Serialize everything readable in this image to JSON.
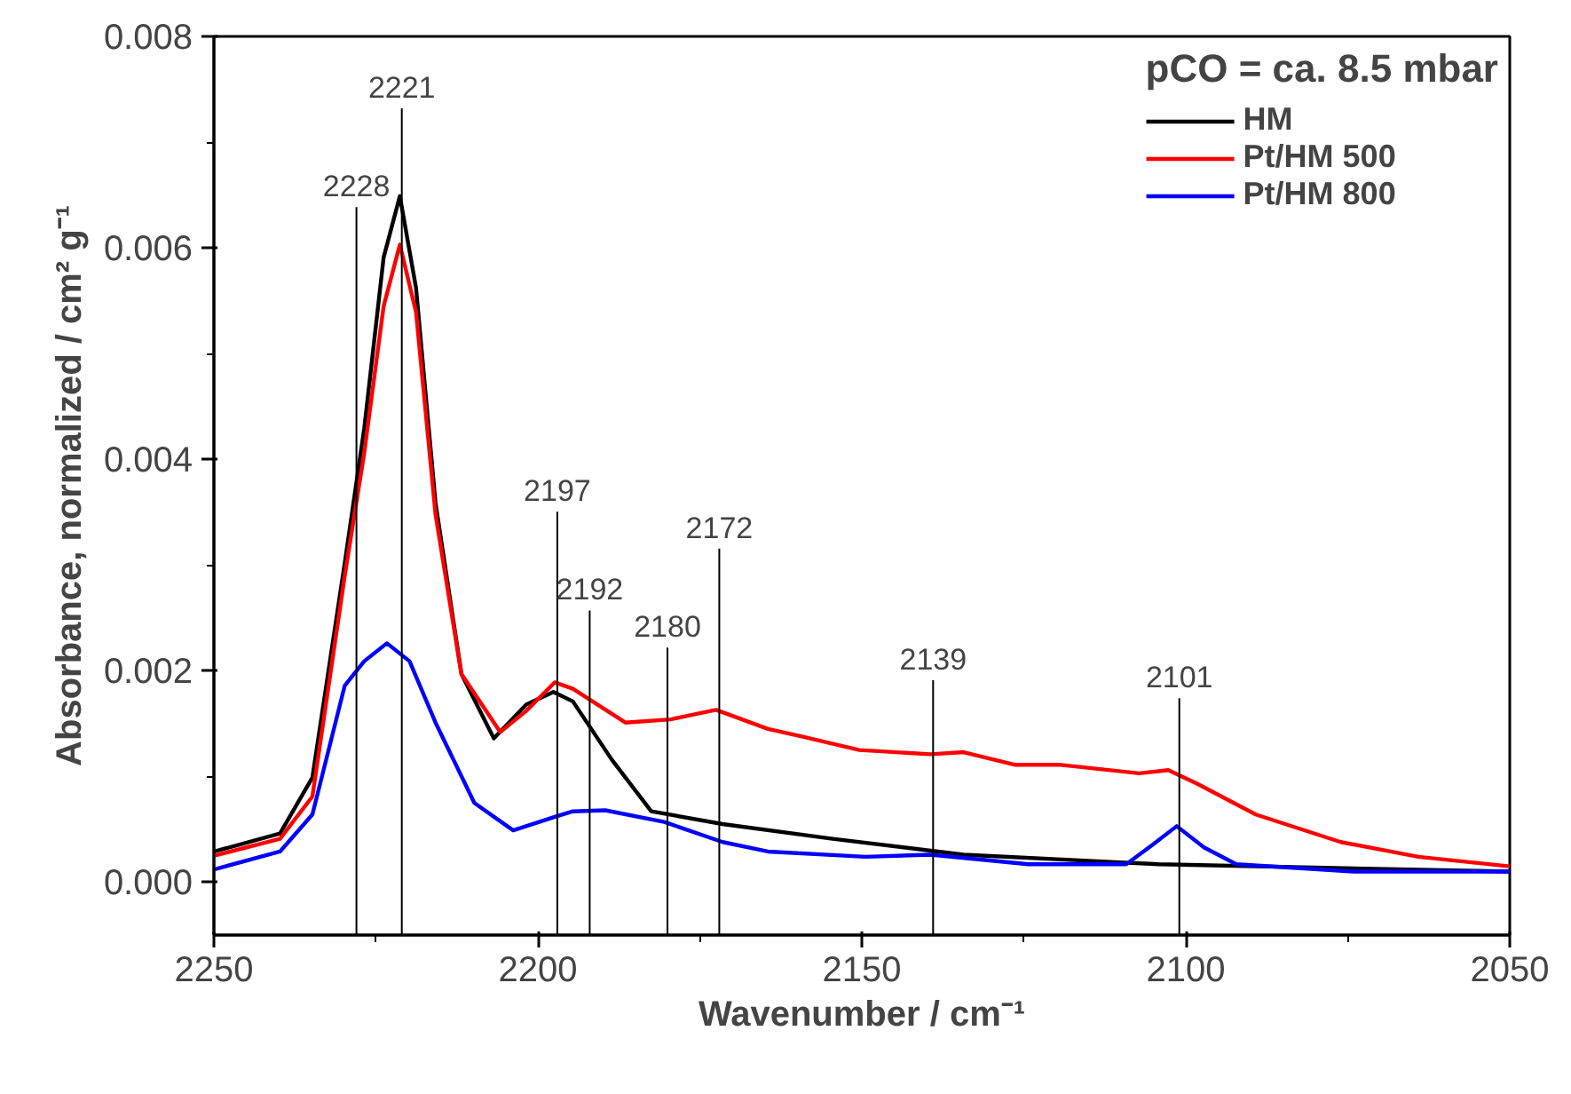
{
  "chart_data": {
    "type": "line",
    "xlabel": "Wavenumber / cm⁻¹",
    "ylabel": "Absorbance, normalized / cm² g⁻¹",
    "legend_title": "pCO = ca. 8.5 mbar",
    "legend": "top right",
    "grid": false,
    "line_style": "solid",
    "marker": "none",
    "xlim": [
      2250,
      2050
    ],
    "xticks": [
      2250,
      2200,
      2150,
      2100,
      2050
    ],
    "ylim": [
      -0.0005,
      0.008
    ],
    "yticks": [
      {
        "value": 0,
        "label": "0.000"
      },
      {
        "value": 0.002,
        "label": "0.002"
      },
      {
        "value": 0.004,
        "label": "0.004"
      },
      {
        "value": 0.006,
        "label": "0.006"
      },
      {
        "value": 0.008,
        "label": "0.008"
      }
    ],
    "series": [
      {
        "name": "HM",
        "color": "#000000",
        "x": [
          2250,
          2239.8,
          2234.8,
          2229.8,
          2226.8,
          2223.8,
          2221.3,
          2218.8,
          2215.8,
          2211.8,
          2206.8,
          2201.8,
          2197.6,
          2194.6,
          2188.6,
          2182.5,
          2171.5,
          2154.5,
          2134.3,
          2104.2,
          2050
        ],
        "values": [
          0.00029,
          0.00046,
          0.00099,
          0.00302,
          0.00429,
          0.00591,
          0.00649,
          0.00562,
          0.00359,
          0.00197,
          0.00136,
          0.00168,
          0.0018,
          0.00171,
          0.00116,
          0.00067,
          0.00055,
          0.00041,
          0.00026,
          0.00017,
          0.0001
        ]
      },
      {
        "name": "Pt/HM 500",
        "color": "#ff0000",
        "x": [
          2250,
          2239.8,
          2234.8,
          2229.8,
          2226.8,
          2223.8,
          2221.3,
          2218.8,
          2215.8,
          2211.8,
          2205.8,
          2201.8,
          2197.4,
          2194.6,
          2186.5,
          2179.5,
          2172.5,
          2164.5,
          2159.4,
          2150.4,
          2139.4,
          2134.3,
          2126.3,
          2119.3,
          2107.2,
          2102.7,
          2098.2,
          2089.2,
          2076.1,
          2064.1,
          2050
        ],
        "values": [
          0.00025,
          0.00041,
          0.00081,
          0.0029,
          0.00406,
          0.00545,
          0.00603,
          0.00539,
          0.00348,
          0.00197,
          0.00142,
          0.00162,
          0.00189,
          0.00183,
          0.00151,
          0.00154,
          0.00163,
          0.00145,
          0.00138,
          0.00125,
          0.00121,
          0.00123,
          0.00111,
          0.00111,
          0.00103,
          0.00106,
          0.00093,
          0.00064,
          0.00038,
          0.00024,
          0.00015
        ]
      },
      {
        "name": "Pt/HM 800",
        "color": "#0000ff",
        "x": [
          2250,
          2239.8,
          2234.8,
          2229.8,
          2226.8,
          2223.3,
          2219.8,
          2215.8,
          2209.8,
          2203.8,
          2197.8,
          2194.6,
          2189.6,
          2180.5,
          2171.5,
          2164.5,
          2149.4,
          2139.4,
          2124.3,
          2109.2,
          2105.2,
          2101.4,
          2097.2,
          2092.2,
          2074.1,
          2050
        ],
        "values": [
          0.00012,
          0.00029,
          0.00064,
          0.00186,
          0.00209,
          0.00226,
          0.00209,
          0.00151,
          0.00075,
          0.00049,
          0.00061,
          0.00067,
          0.00068,
          0.00057,
          0.00038,
          0.00029,
          0.00024,
          0.00026,
          0.00017,
          0.00017,
          0.00035,
          0.00053,
          0.00033,
          0.00017,
          0.0001,
          0.0001
        ]
      }
    ],
    "ref_lines": [
      {
        "axis": "x",
        "value": 2228,
        "label": "2228"
      },
      {
        "axis": "x",
        "value": 2221,
        "label": "2221"
      },
      {
        "axis": "x",
        "value": 2197,
        "label": "2197"
      },
      {
        "axis": "x",
        "value": 2192,
        "label": "2192"
      },
      {
        "axis": "x",
        "value": 2180,
        "label": "2180"
      },
      {
        "axis": "x",
        "value": 2172,
        "label": "2172"
      },
      {
        "axis": "x",
        "value": 2139,
        "label": "2139"
      },
      {
        "axis": "x",
        "value": 2101,
        "label": "2101"
      }
    ]
  }
}
